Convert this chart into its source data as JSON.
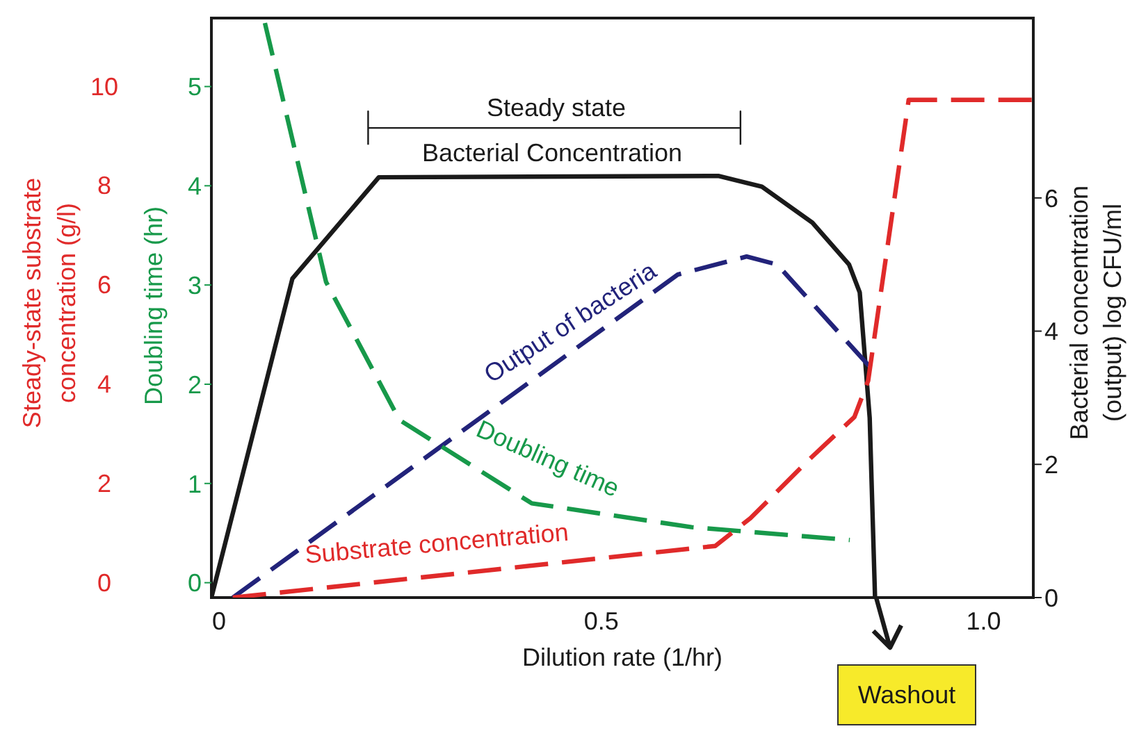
{
  "chart_data": {
    "type": "line",
    "xlabel": "Dilution rate (1/hr)",
    "ylabel": "Steady-state substrate concentration (g/l)",
    "y2label": "Doubling time (hr)",
    "y3label": "Bacterial concentration (output) log CFU/ml",
    "xlim": [
      -0.01,
      1.065
    ],
    "xticks": [
      0,
      0.5,
      {
        "value": 1,
        "label": "1.0"
      }
    ],
    "ylim": [
      -0.31,
      11.37
    ],
    "yticks": [
      0,
      2,
      4,
      6,
      8,
      10
    ],
    "y2lim": [
      -0.15,
      5.69
    ],
    "y2ticks": [
      0,
      1,
      2,
      3,
      4,
      5
    ],
    "y3lim": [
      0,
      8.7
    ],
    "y3ticks": [
      0,
      2,
      4,
      6
    ],
    "series": [
      {
        "name": "Bacterial Concentration",
        "color": "#1a1a1a",
        "axis": "y3",
        "line_style": "solid",
        "x": [
          -0.01,
          0.096,
          0.209,
          0.653,
          0.71,
          0.776,
          0.824,
          0.838,
          0.851,
          0.858
        ],
        "values": [
          0,
          4.79,
          6.31,
          6.33,
          6.17,
          5.63,
          5.0,
          4.58,
          2.7,
          0
        ]
      },
      {
        "name": "Output of bacteria",
        "color": "#22237a",
        "axis": "y3",
        "line_style": "dashed",
        "x": [
          0.018,
          0.6,
          0.69,
          0.73,
          0.85
        ],
        "values": [
          0,
          4.85,
          5.12,
          5.0,
          3.48
        ]
      },
      {
        "name": "Doubling time",
        "color": "#17994a",
        "axis": "y2",
        "line_style": "dashed",
        "x": [
          0.06,
          0.14,
          0.236,
          0.409,
          0.618,
          0.825
        ],
        "values": [
          5.64,
          3.03,
          1.64,
          0.8,
          0.56,
          0.43
        ]
      },
      {
        "name": "Substrate concentration",
        "color": "#e02a2a",
        "axis": "y",
        "line_style": "dashed",
        "x": [
          0.018,
          0.649,
          0.695,
          0.773,
          0.831,
          0.849,
          0.902,
          1.064
        ],
        "values": [
          -0.31,
          0.73,
          1.29,
          2.49,
          3.33,
          4.06,
          9.72,
          9.72
        ]
      },
      {
        "color": "#1a1a1a",
        "axis": "y3",
        "line_style": "solid",
        "x": [
          0.195,
          0.195,
          0.195,
          0.682,
          0.682,
          0.682
        ],
        "values": [
          6.8,
          7.3,
          7.05,
          7.05,
          7.3,
          6.8
        ]
      }
    ],
    "annotations": [
      "Steady state",
      "Washout"
    ]
  }
}
